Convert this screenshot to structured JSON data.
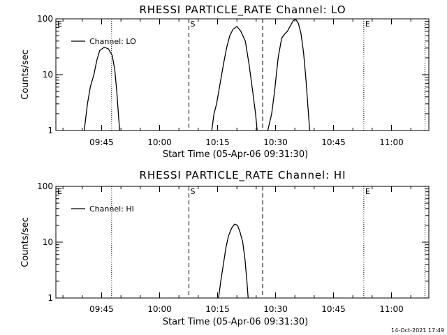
{
  "window": {
    "footer_timestamp": "14-Oct-2021 17:49"
  },
  "colors": {
    "background": "#ffffff",
    "foreground": "#000000"
  },
  "chart_data": [
    {
      "type": "line",
      "title": "RHESSI PARTICLE_RATE Channel: LO",
      "xlabel": "Start Time (05-Apr-06 09:31:30)",
      "ylabel": "Counts/sec",
      "yscale": "log",
      "xlim": [
        "09:33:10",
        "11:09:40"
      ],
      "ylim": [
        1,
        100
      ],
      "x_ticks": [
        "09:45",
        "10:00",
        "10:15",
        "10:30",
        "10:45",
        "11:00"
      ],
      "y_ticks": [
        "1",
        "10",
        "100"
      ],
      "legend": {
        "placement": "top-left",
        "entries": [
          "Channel: LO"
        ]
      },
      "markers": [
        {
          "time": "09:33:10",
          "style": "dotted",
          "label": "E"
        },
        {
          "time": "09:47:35",
          "style": "dotted",
          "label": ""
        },
        {
          "time": "10:07:35",
          "style": "dashed",
          "label": "S"
        },
        {
          "time": "10:26:40",
          "style": "dashed",
          "label": ""
        },
        {
          "time": "10:52:50",
          "style": "dotted",
          "label": "E"
        },
        {
          "time": "11:08:40",
          "style": "dotted",
          "label": ""
        }
      ],
      "series": [
        {
          "name": "Channel: LO",
          "points": [
            [
              "09:40:30",
              1
            ],
            [
              "09:41:20",
              3
            ],
            [
              "09:42:05",
              6
            ],
            [
              "09:43:00",
              10
            ],
            [
              "09:43:45",
              18
            ],
            [
              "09:44:30",
              27
            ],
            [
              "09:45:40",
              31
            ],
            [
              "09:46:45",
              29
            ],
            [
              "09:47:45",
              22
            ],
            [
              "09:48:25",
              12
            ],
            [
              "09:48:55",
              5
            ],
            [
              "09:49:20",
              2
            ],
            [
              "09:49:40",
              1
            ],
            null,
            [
              "10:13:30",
              1
            ],
            [
              "10:14:05",
              2
            ],
            [
              "10:14:45",
              3
            ],
            [
              "10:15:40",
              7
            ],
            [
              "10:16:30",
              15
            ],
            [
              "10:17:20",
              30
            ],
            [
              "10:18:10",
              50
            ],
            [
              "10:19:00",
              65
            ],
            [
              "10:20:00",
              73
            ],
            [
              "10:21:00",
              60
            ],
            [
              "10:22:10",
              40
            ],
            [
              "10:23:10",
              15
            ],
            [
              "10:24:05",
              5
            ],
            [
              "10:24:50",
              2
            ],
            [
              "10:25:15",
              1
            ],
            null,
            [
              "10:28:00",
              1
            ],
            [
              "10:29:00",
              2
            ],
            [
              "10:29:45",
              5
            ],
            [
              "10:30:40",
              20
            ],
            [
              "10:31:35",
              45
            ],
            [
              "10:32:20",
              53
            ],
            [
              "10:33:05",
              60
            ],
            [
              "10:33:50",
              75
            ],
            [
              "10:34:35",
              93
            ],
            [
              "10:35:15",
              98
            ],
            [
              "10:35:55",
              83
            ],
            [
              "10:36:35",
              55
            ],
            [
              "10:37:15",
              25
            ],
            [
              "10:37:50",
              9
            ],
            [
              "10:38:20",
              3
            ],
            [
              "10:38:50",
              1
            ]
          ]
        }
      ]
    },
    {
      "type": "line",
      "title": "RHESSI PARTICLE_RATE Channel: HI",
      "xlabel": "Start Time (05-Apr-06 09:31:30)",
      "ylabel": "Counts/sec",
      "yscale": "log",
      "xlim": [
        "09:33:10",
        "11:09:40"
      ],
      "ylim": [
        1,
        100
      ],
      "x_ticks": [
        "09:45",
        "10:00",
        "10:15",
        "10:30",
        "10:45",
        "11:00"
      ],
      "y_ticks": [
        "1",
        "10",
        "100"
      ],
      "legend": {
        "placement": "top-left",
        "entries": [
          "Channel: HI"
        ]
      },
      "markers": [
        {
          "time": "09:33:10",
          "style": "dotted",
          "label": "E"
        },
        {
          "time": "09:47:35",
          "style": "dotted",
          "label": ""
        },
        {
          "time": "10:07:35",
          "style": "dashed",
          "label": "S"
        },
        {
          "time": "10:26:40",
          "style": "dashed",
          "label": ""
        },
        {
          "time": "10:52:50",
          "style": "dotted",
          "label": "E"
        },
        {
          "time": "11:08:40",
          "style": "dotted",
          "label": ""
        }
      ],
      "series": [
        {
          "name": "Channel: HI",
          "points": [
            [
              "10:15:15",
              1
            ],
            [
              "10:15:50",
              2
            ],
            [
              "10:16:30",
              4
            ],
            [
              "10:17:10",
              8
            ],
            [
              "10:17:50",
              13
            ],
            [
              "10:18:40",
              18
            ],
            [
              "10:19:25",
              21
            ],
            [
              "10:20:10",
              20
            ],
            [
              "10:20:50",
              15
            ],
            [
              "10:21:30",
              10
            ],
            [
              "10:22:05",
              5
            ],
            [
              "10:22:35",
              2
            ],
            [
              "10:22:55",
              1
            ]
          ]
        }
      ]
    }
  ]
}
